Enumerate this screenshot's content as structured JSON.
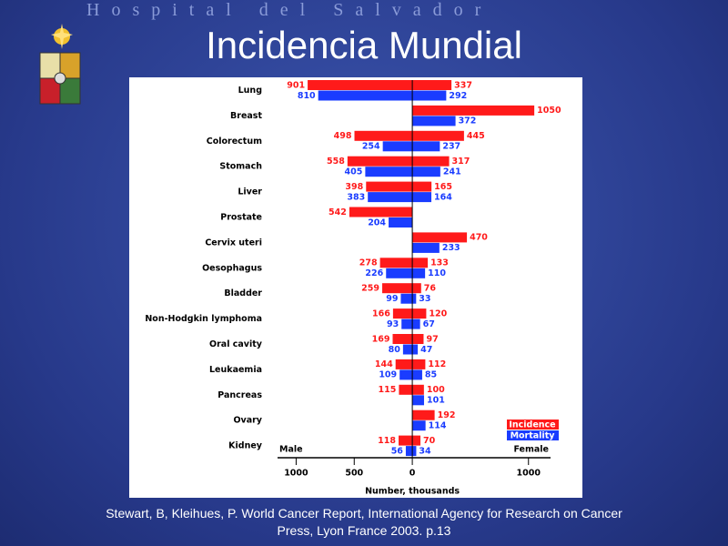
{
  "header": "H o s p i t a l   d e l   S a l v a d o r",
  "chart_data": {
    "type": "butterfly-bar",
    "title": "Incidencia Mundial",
    "categories": [
      "Lung",
      "Breast",
      "Colorectum",
      "Stomach",
      "Liver",
      "Prostate",
      "Cervix uteri",
      "Oesophagus",
      "Bladder",
      "Non-Hodgkin lymphoma",
      "Oral cavity",
      "Leukaemia",
      "Pancreas",
      "Ovary",
      "Kidney"
    ],
    "left_label": "Male",
    "right_label": "Female",
    "series": [
      {
        "name": "Incidence",
        "color": "#ff1a1a",
        "male_values": [
          -901,
          null,
          -498,
          -558,
          -398,
          -542,
          null,
          -278,
          -259,
          -166,
          -169,
          -144,
          -115,
          null,
          -118
        ],
        "male_value_labels": [
          "901",
          null,
          "498",
          "558",
          "398",
          "542",
          null,
          "278",
          "259",
          "166",
          "169",
          "144",
          "115",
          null,
          "118"
        ],
        "female_values": [
          337,
          1050,
          445,
          317,
          165,
          null,
          470,
          133,
          76,
          120,
          97,
          112,
          100,
          192,
          70
        ]
      },
      {
        "name": "Mortality",
        "color": "#1a3cff",
        "male_values": [
          -810,
          null,
          -254,
          -405,
          -383,
          -204,
          null,
          -226,
          -99,
          -93,
          -80,
          -109,
          null,
          null,
          -56
        ],
        "male_value_labels": [
          "810",
          null,
          "254",
          "405",
          "383",
          "204",
          null,
          "226",
          "99",
          "93",
          "80",
          "109",
          null,
          null,
          "56"
        ],
        "female_values": [
          292,
          372,
          237,
          241,
          164,
          null,
          233,
          110,
          33,
          67,
          47,
          85,
          101,
          114,
          34
        ]
      }
    ],
    "xlim": [
      -1160,
      1190
    ],
    "xticks": [
      {
        "value": -1000,
        "label": "1000"
      },
      {
        "value": -500,
        "label": "500"
      },
      0,
      1000
    ],
    "xlabel": "Number, thousands",
    "legend": "bottom-right"
  },
  "caption": "Stewart, B, Kleihues, P. World Cancer Report, International Agency for Research on Cancer Press, Lyon France 2003. p.13"
}
